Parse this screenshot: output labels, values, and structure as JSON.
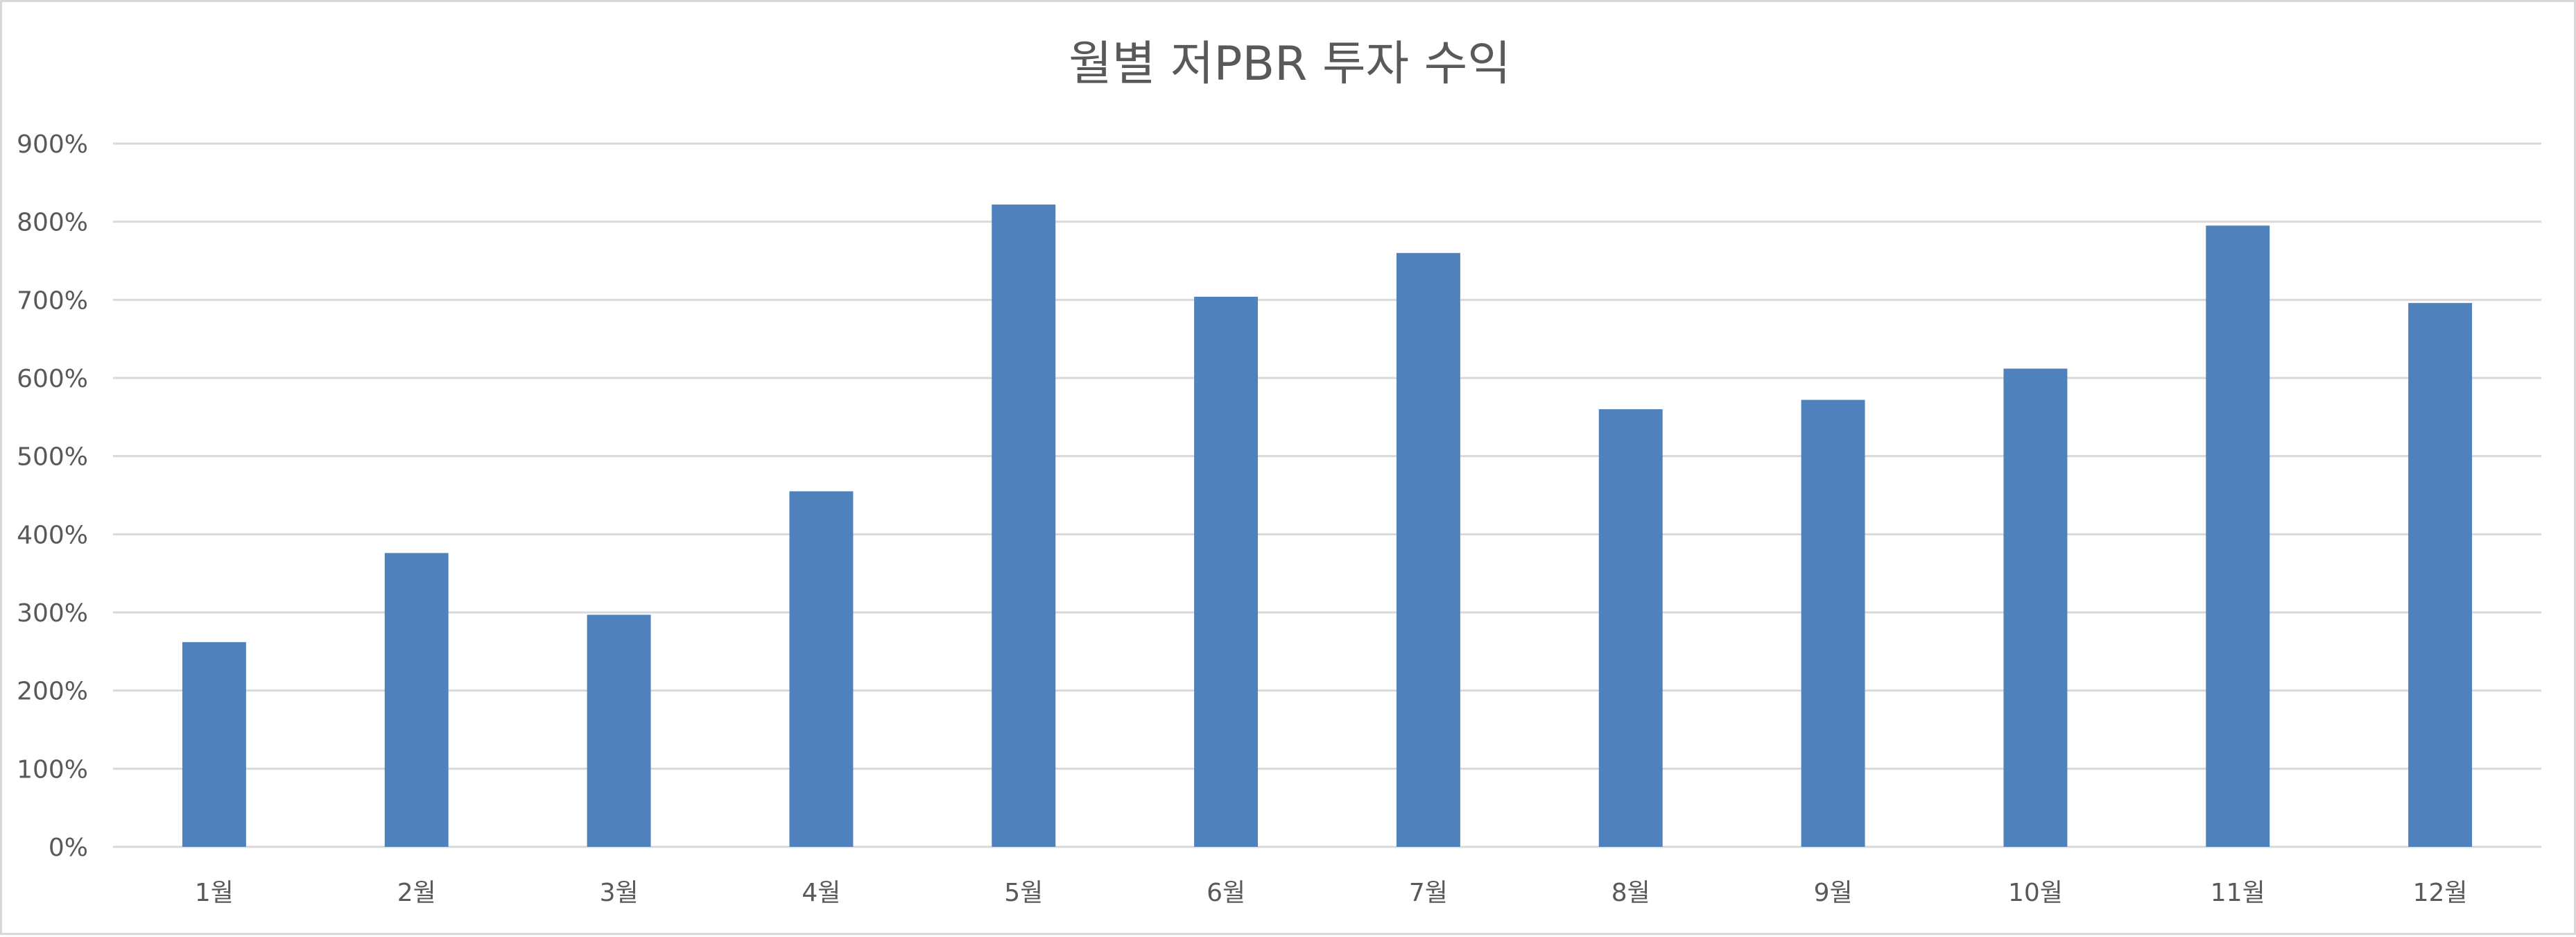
{
  "chart_data": {
    "type": "bar",
    "title": "월별 저PBR 투자 수익",
    "xlabel": "",
    "ylabel": "",
    "categories": [
      "1월",
      "2월",
      "3월",
      "4월",
      "5월",
      "6월",
      "7월",
      "8월",
      "9월",
      "10월",
      "11월",
      "12월"
    ],
    "series": [
      {
        "values": [
          262,
          376,
          297,
          455,
          822,
          704,
          760,
          560,
          572,
          612,
          795,
          696
        ],
        "color": "#4f81bd"
      }
    ],
    "ylim": [
      0,
      900
    ],
    "yticks": [
      0,
      100,
      200,
      300,
      400,
      500,
      600,
      700,
      800,
      900
    ],
    "ytick_labels": [
      "0%",
      "100%",
      "200%",
      "300%",
      "400%",
      "500%",
      "600%",
      "700%",
      "800%",
      "900%"
    ],
    "grid": true,
    "legend": "none"
  }
}
